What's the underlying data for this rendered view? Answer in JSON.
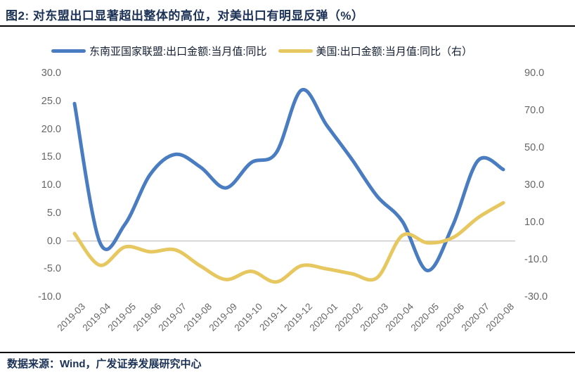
{
  "title": "图2:  对东盟出口显著超出整体的高位，对美出口有明显反弹（%）",
  "footer": {
    "source": "数据来源：Wind，广发证券发展研究中心"
  },
  "colors": {
    "asean_line": "#4a7cc1",
    "us_line": "#e7c75f",
    "zero_line": "#c9c9c9",
    "title_text": "#1b3156",
    "axis_text": "#666666",
    "rule": "#000000"
  },
  "chart_data": {
    "type": "line",
    "categories": [
      "2019-03",
      "2019-04",
      "2019-05",
      "2019-06",
      "2019-07",
      "2019-08",
      "2019-09",
      "2019-10",
      "2019-11",
      "2019-12",
      "2020-01",
      "2020-02",
      "2020-03",
      "2020-04",
      "2020-05",
      "2020-06",
      "2020-07",
      "2020-08"
    ],
    "series": [
      {
        "name": "东南亚国家联盟:出口金额:当月值:同比",
        "axis": "left",
        "color_key": "asean_line",
        "values": [
          24.6,
          -0.2,
          3.0,
          11.9,
          15.5,
          13.2,
          9.5,
          14.0,
          15.8,
          27.0,
          20.7,
          14.6,
          8.0,
          3.5,
          -5.3,
          2.8,
          14.4,
          12.8
        ]
      },
      {
        "name": "美国:出口金额:当月值:同比（右）",
        "axis": "right",
        "color_key": "us_line",
        "values": [
          4.0,
          -13.0,
          -3.2,
          -5.8,
          -4.8,
          -13.5,
          -20.7,
          -16.3,
          -22.0,
          -13.3,
          -15.0,
          -17.6,
          -19.7,
          3.0,
          -1.0,
          1.8,
          12.5,
          20.5
        ]
      }
    ],
    "left_axis": {
      "min": -10,
      "max": 30,
      "ticks": [
        "30.0",
        "25.0",
        "20.0",
        "15.0",
        "10.0",
        "5.0",
        "0.0",
        "-5.0",
        "-10.0"
      ]
    },
    "right_axis": {
      "min": -30,
      "max": 90,
      "ticks": [
        "90.0",
        "70.0",
        "50.0",
        "30.0",
        "10.0",
        "-10.0",
        "-30.0"
      ]
    },
    "grid": "zero-line-only",
    "legend_position": "top",
    "smoothed": true
  }
}
